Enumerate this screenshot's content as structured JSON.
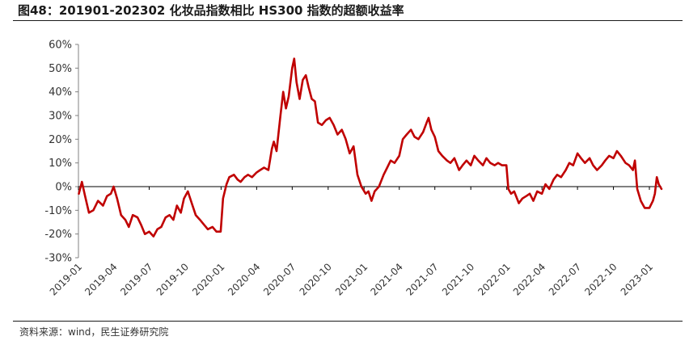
{
  "header": {
    "title": "图48：201901-202302 化妆品指数相比 HS300 指数的超额收益率"
  },
  "footer": {
    "source": "资料来源：wind，民生证券研究院"
  },
  "colors": {
    "series": "#c00000",
    "axis": "#808080",
    "text": "#333333"
  },
  "chart_data": {
    "type": "line",
    "title": "图48：201901-202302 化妆品指数相比 HS300 指数的超额收益率",
    "xlabel": "",
    "ylabel": "",
    "grid": false,
    "legend": "none",
    "ylim": [
      -30,
      60
    ],
    "yticks": [
      -30,
      -20,
      -10,
      0,
      10,
      20,
      30,
      40,
      50,
      60
    ],
    "ytick_labels": [
      "-30%",
      "-20%",
      "-10%",
      "0%",
      "10%",
      "20%",
      "30%",
      "40%",
      "50%",
      "60%"
    ],
    "xlim": [
      "2019-01",
      "2023-02"
    ],
    "xtick_labels": [
      "2019-01",
      "2019-04",
      "2019-07",
      "2019-10",
      "2020-01",
      "2020-04",
      "2020-07",
      "2020-10",
      "2021-01",
      "2021-04",
      "2021-07",
      "2021-10",
      "2022-01",
      "2022-04",
      "2022-07",
      "2022-10",
      "2023-01"
    ],
    "series": [
      {
        "values": [
          [
            "2019-01-02",
            -3
          ],
          [
            "2019-01-10",
            2
          ],
          [
            "2019-01-18",
            -4
          ],
          [
            "2019-01-28",
            -11
          ],
          [
            "2019-02-08",
            -10
          ],
          [
            "2019-02-20",
            -6
          ],
          [
            "2019-03-05",
            -8
          ],
          [
            "2019-03-15",
            -4
          ],
          [
            "2019-03-25",
            -3
          ],
          [
            "2019-04-01",
            0
          ],
          [
            "2019-04-10",
            -5
          ],
          [
            "2019-04-20",
            -12
          ],
          [
            "2019-05-01",
            -14
          ],
          [
            "2019-05-10",
            -17
          ],
          [
            "2019-05-20",
            -12
          ],
          [
            "2019-06-01",
            -13
          ],
          [
            "2019-06-10",
            -16
          ],
          [
            "2019-06-20",
            -20
          ],
          [
            "2019-07-01",
            -19
          ],
          [
            "2019-07-12",
            -21
          ],
          [
            "2019-07-22",
            -18
          ],
          [
            "2019-08-01",
            -17
          ],
          [
            "2019-08-12",
            -13
          ],
          [
            "2019-08-22",
            -12
          ],
          [
            "2019-09-01",
            -14
          ],
          [
            "2019-09-10",
            -8
          ],
          [
            "2019-09-20",
            -11
          ],
          [
            "2019-09-28",
            -5
          ],
          [
            "2019-10-08",
            -2
          ],
          [
            "2019-10-18",
            -7
          ],
          [
            "2019-10-28",
            -12
          ],
          [
            "2019-11-08",
            -14
          ],
          [
            "2019-11-18",
            -16
          ],
          [
            "2019-11-28",
            -18
          ],
          [
            "2019-12-10",
            -17
          ],
          [
            "2019-12-20",
            -19
          ],
          [
            "2019-12-31",
            -19
          ],
          [
            "2020-01-06",
            -5
          ],
          [
            "2020-01-15",
            1
          ],
          [
            "2020-01-22",
            4
          ],
          [
            "2020-02-03",
            5
          ],
          [
            "2020-02-12",
            3
          ],
          [
            "2020-02-20",
            2
          ],
          [
            "2020-03-01",
            4
          ],
          [
            "2020-03-10",
            5
          ],
          [
            "2020-03-20",
            4
          ],
          [
            "2020-04-01",
            6
          ],
          [
            "2020-04-10",
            7
          ],
          [
            "2020-04-20",
            8
          ],
          [
            "2020-05-01",
            7
          ],
          [
            "2020-05-10",
            16
          ],
          [
            "2020-05-15",
            19
          ],
          [
            "2020-05-22",
            15
          ],
          [
            "2020-06-01",
            30
          ],
          [
            "2020-06-08",
            40
          ],
          [
            "2020-06-15",
            33
          ],
          [
            "2020-06-22",
            38
          ],
          [
            "2020-07-01",
            50
          ],
          [
            "2020-07-06",
            54
          ],
          [
            "2020-07-12",
            44
          ],
          [
            "2020-07-20",
            37
          ],
          [
            "2020-07-28",
            45
          ],
          [
            "2020-08-05",
            47
          ],
          [
            "2020-08-12",
            42
          ],
          [
            "2020-08-20",
            37
          ],
          [
            "2020-08-28",
            36
          ],
          [
            "2020-09-05",
            27
          ],
          [
            "2020-09-15",
            26
          ],
          [
            "2020-09-25",
            28
          ],
          [
            "2020-10-05",
            29
          ],
          [
            "2020-10-15",
            26
          ],
          [
            "2020-10-25",
            22
          ],
          [
            "2020-11-05",
            24
          ],
          [
            "2020-11-15",
            20
          ],
          [
            "2020-11-25",
            14
          ],
          [
            "2020-12-05",
            17
          ],
          [
            "2020-12-15",
            5
          ],
          [
            "2020-12-25",
            0
          ],
          [
            "2021-01-05",
            -3
          ],
          [
            "2021-01-12",
            -2
          ],
          [
            "2021-01-20",
            -6
          ],
          [
            "2021-01-28",
            -2
          ],
          [
            "2021-02-08",
            0
          ],
          [
            "2021-02-20",
            5
          ],
          [
            "2021-03-01",
            8
          ],
          [
            "2021-03-10",
            11
          ],
          [
            "2021-03-20",
            10
          ],
          [
            "2021-04-01",
            13
          ],
          [
            "2021-04-10",
            20
          ],
          [
            "2021-04-20",
            22
          ],
          [
            "2021-05-01",
            24
          ],
          [
            "2021-05-10",
            21
          ],
          [
            "2021-05-20",
            20
          ],
          [
            "2021-06-01",
            23
          ],
          [
            "2021-06-10",
            27
          ],
          [
            "2021-06-15",
            29
          ],
          [
            "2021-06-22",
            24
          ],
          [
            "2021-07-01",
            21
          ],
          [
            "2021-07-10",
            15
          ],
          [
            "2021-07-20",
            13
          ],
          [
            "2021-08-01",
            11
          ],
          [
            "2021-08-10",
            10
          ],
          [
            "2021-08-20",
            12
          ],
          [
            "2021-09-01",
            7
          ],
          [
            "2021-09-10",
            9
          ],
          [
            "2021-09-20",
            11
          ],
          [
            "2021-10-01",
            9
          ],
          [
            "2021-10-10",
            13
          ],
          [
            "2021-10-20",
            11
          ],
          [
            "2021-11-01",
            9
          ],
          [
            "2021-11-10",
            12
          ],
          [
            "2021-11-20",
            10
          ],
          [
            "2021-12-01",
            9
          ],
          [
            "2021-12-10",
            10
          ],
          [
            "2021-12-20",
            9
          ],
          [
            "2021-12-31",
            9
          ],
          [
            "2022-01-05",
            -1
          ],
          [
            "2022-01-12",
            -3
          ],
          [
            "2022-01-20",
            -2
          ],
          [
            "2022-02-01",
            -7
          ],
          [
            "2022-02-10",
            -5
          ],
          [
            "2022-02-20",
            -4
          ],
          [
            "2022-03-01",
            -3
          ],
          [
            "2022-03-10",
            -6
          ],
          [
            "2022-03-20",
            -2
          ],
          [
            "2022-04-01",
            -3
          ],
          [
            "2022-04-10",
            1
          ],
          [
            "2022-04-20",
            -1
          ],
          [
            "2022-05-01",
            3
          ],
          [
            "2022-05-10",
            5
          ],
          [
            "2022-05-20",
            4
          ],
          [
            "2022-06-01",
            7
          ],
          [
            "2022-06-10",
            10
          ],
          [
            "2022-06-20",
            9
          ],
          [
            "2022-07-01",
            14
          ],
          [
            "2022-07-10",
            12
          ],
          [
            "2022-07-20",
            10
          ],
          [
            "2022-08-01",
            12
          ],
          [
            "2022-08-10",
            9
          ],
          [
            "2022-08-20",
            7
          ],
          [
            "2022-09-01",
            9
          ],
          [
            "2022-09-10",
            11
          ],
          [
            "2022-09-20",
            13
          ],
          [
            "2022-10-01",
            12
          ],
          [
            "2022-10-10",
            15
          ],
          [
            "2022-10-20",
            13
          ],
          [
            "2022-11-01",
            10
          ],
          [
            "2022-11-10",
            9
          ],
          [
            "2022-11-20",
            7
          ],
          [
            "2022-11-25",
            11
          ],
          [
            "2022-12-01",
            -1
          ],
          [
            "2022-12-10",
            -6
          ],
          [
            "2022-12-20",
            -9
          ],
          [
            "2023-01-01",
            -9
          ],
          [
            "2023-01-10",
            -6
          ],
          [
            "2023-01-15",
            -3
          ],
          [
            "2023-01-20",
            4
          ],
          [
            "2023-01-25",
            1
          ],
          [
            "2023-02-01",
            -1
          ]
        ]
      }
    ]
  }
}
